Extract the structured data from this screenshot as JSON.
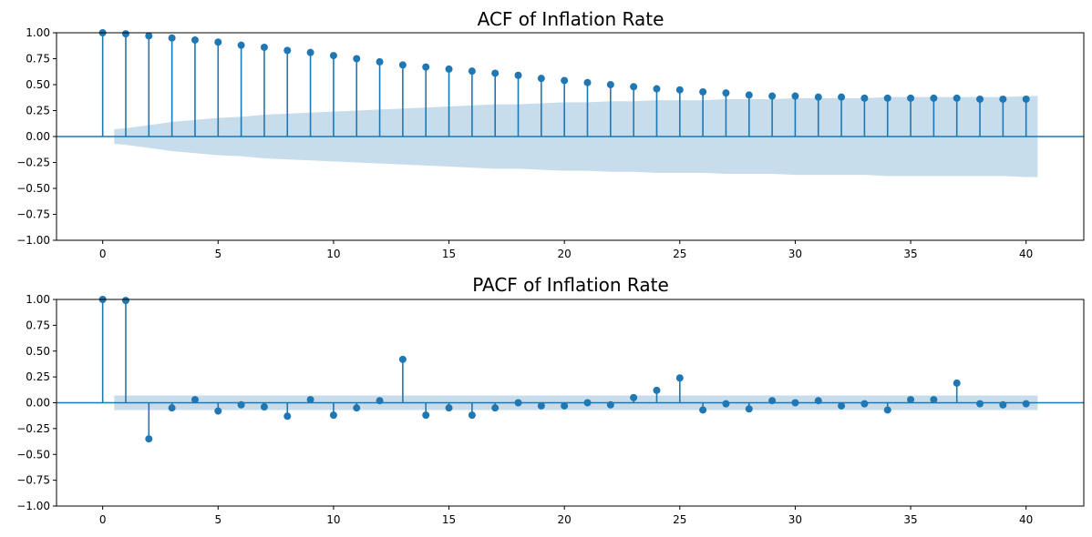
{
  "colors": {
    "series": "#1f77b4",
    "band": "#1f77b4"
  },
  "chart_data": [
    {
      "type": "stem",
      "title": "ACF of Inflation Rate",
      "xlim": [
        -2,
        42.5
      ],
      "ylim": [
        -1.0,
        1.0
      ],
      "xticks": [
        0,
        5,
        10,
        15,
        20,
        25,
        30,
        35,
        40
      ],
      "yticks": [
        -1.0,
        -0.75,
        -0.5,
        -0.25,
        0.0,
        0.25,
        0.5,
        0.75,
        1.0
      ],
      "ytick_labels": [
        "−1.00",
        "−0.75",
        "−0.50",
        "−0.25",
        "0.00",
        "0.25",
        "0.50",
        "0.75",
        "1.00"
      ],
      "xtick_labels": [
        "0",
        "5",
        "10",
        "15",
        "20",
        "25",
        "30",
        "35",
        "40"
      ],
      "grid": false,
      "lags": [
        0,
        1,
        2,
        3,
        4,
        5,
        6,
        7,
        8,
        9,
        10,
        11,
        12,
        13,
        14,
        15,
        16,
        17,
        18,
        19,
        20,
        21,
        22,
        23,
        24,
        25,
        26,
        27,
        28,
        29,
        30,
        31,
        32,
        33,
        34,
        35,
        36,
        37,
        38,
        39,
        40
      ],
      "values": [
        1.0,
        0.99,
        0.97,
        0.95,
        0.93,
        0.91,
        0.88,
        0.86,
        0.83,
        0.81,
        0.78,
        0.75,
        0.72,
        0.69,
        0.67,
        0.65,
        0.63,
        0.61,
        0.59,
        0.56,
        0.54,
        0.52,
        0.5,
        0.48,
        0.46,
        0.45,
        0.43,
        0.42,
        0.4,
        0.39,
        0.39,
        0.38,
        0.38,
        0.37,
        0.37,
        0.37,
        0.37,
        0.37,
        0.36,
        0.36,
        0.36
      ],
      "confidence_band": {
        "lags": [
          0.5,
          1,
          2,
          3,
          4,
          5,
          6,
          7,
          8,
          9,
          10,
          11,
          12,
          13,
          14,
          15,
          16,
          17,
          18,
          19,
          20,
          21,
          22,
          23,
          24,
          25,
          26,
          27,
          28,
          29,
          30,
          31,
          32,
          33,
          34,
          35,
          36,
          37,
          38,
          39,
          40,
          40.5
        ],
        "upper": [
          0.07,
          0.08,
          0.11,
          0.14,
          0.16,
          0.18,
          0.19,
          0.21,
          0.22,
          0.23,
          0.24,
          0.25,
          0.26,
          0.27,
          0.28,
          0.29,
          0.3,
          0.31,
          0.31,
          0.32,
          0.33,
          0.33,
          0.34,
          0.34,
          0.35,
          0.35,
          0.35,
          0.36,
          0.36,
          0.36,
          0.37,
          0.37,
          0.37,
          0.37,
          0.38,
          0.38,
          0.38,
          0.38,
          0.38,
          0.38,
          0.39,
          0.39
        ]
      }
    },
    {
      "type": "stem",
      "title": "PACF of Inflation Rate",
      "xlim": [
        -2,
        42.5
      ],
      "ylim": [
        -1.0,
        1.0
      ],
      "xticks": [
        0,
        5,
        10,
        15,
        20,
        25,
        30,
        35,
        40
      ],
      "yticks": [
        -1.0,
        -0.75,
        -0.5,
        -0.25,
        0.0,
        0.25,
        0.5,
        0.75,
        1.0
      ],
      "ytick_labels": [
        "−1.00",
        "−0.75",
        "−0.50",
        "−0.25",
        "0.00",
        "0.25",
        "0.50",
        "0.75",
        "1.00"
      ],
      "xtick_labels": [
        "0",
        "5",
        "10",
        "15",
        "20",
        "25",
        "30",
        "35",
        "40"
      ],
      "grid": false,
      "lags": [
        0,
        1,
        2,
        3,
        4,
        5,
        6,
        7,
        8,
        9,
        10,
        11,
        12,
        13,
        14,
        15,
        16,
        17,
        18,
        19,
        20,
        21,
        22,
        23,
        24,
        25,
        26,
        27,
        28,
        29,
        30,
        31,
        32,
        33,
        34,
        35,
        36,
        37,
        38,
        39,
        40
      ],
      "values": [
        1.0,
        0.99,
        -0.35,
        -0.05,
        0.03,
        -0.08,
        -0.02,
        -0.04,
        -0.13,
        0.03,
        -0.12,
        -0.05,
        0.02,
        0.42,
        -0.12,
        -0.05,
        -0.12,
        -0.05,
        0.0,
        -0.03,
        -0.03,
        0.0,
        -0.02,
        0.05,
        0.12,
        0.24,
        -0.07,
        -0.01,
        -0.06,
        0.02,
        0.0,
        0.02,
        -0.03,
        -0.01,
        -0.07,
        0.03,
        0.03,
        0.19,
        -0.01,
        -0.02,
        -0.01
      ],
      "confidence_band": {
        "lags": [
          0.5,
          40.5
        ],
        "upper": [
          0.07,
          0.07
        ]
      }
    }
  ]
}
